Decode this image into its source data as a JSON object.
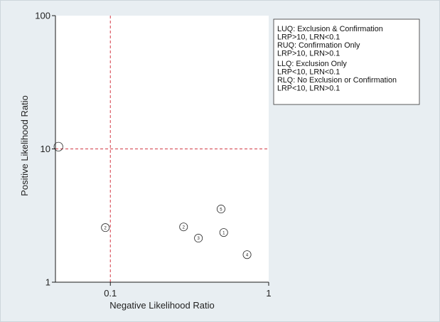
{
  "colors": {
    "background": "#e8eef2",
    "plot_background": "#ffffff",
    "axis": "#1a1a1a",
    "reference_line": "#d23a46",
    "marker": "#2b2b2b"
  },
  "chart_data": {
    "type": "scatter",
    "xlabel": "Negative Likelihood Ratio",
    "ylabel": "Positive Likelihood Ratio",
    "xscale": "log",
    "yscale": "log",
    "xlim": [
      0.045,
      1
    ],
    "ylim": [
      1,
      100
    ],
    "grid": false,
    "xticks": [
      {
        "value": 0.1,
        "label": "0.1"
      },
      {
        "value": 1,
        "label": "1"
      }
    ],
    "yticks": [
      {
        "value": 1,
        "label": "1"
      },
      {
        "value": 10,
        "label": "10"
      },
      {
        "value": 100,
        "label": "100"
      }
    ],
    "reference_lines": [
      {
        "axis": "x",
        "value": 0.1,
        "style": "dashed"
      },
      {
        "axis": "y",
        "value": 10,
        "style": "dashed"
      }
    ],
    "points": [
      {
        "x": 0.047,
        "y": 10.4
      },
      {
        "x": 0.093,
        "y": 2.57,
        "label": "2"
      },
      {
        "x": 0.29,
        "y": 2.6,
        "label": "2"
      },
      {
        "x": 0.36,
        "y": 2.14,
        "label": "3"
      },
      {
        "x": 0.5,
        "y": 3.54,
        "label": "5"
      },
      {
        "x": 0.52,
        "y": 2.36,
        "label": "1"
      },
      {
        "x": 0.73,
        "y": 1.61,
        "label": "4"
      }
    ],
    "legend": {
      "position": "top-right",
      "lines": [
        "LUQ: Exclusion & Confirmation",
        "LRP>10, LRN<0.1",
        "RUQ: Confirmation Only",
        "LRP>10, LRN>0.1",
        "LLQ: Exclusion Only",
        "LRP<10, LRN<0.1",
        "RLQ: No Exclusion or Confirmation",
        "LRP<10, LRN>0.1"
      ]
    }
  }
}
